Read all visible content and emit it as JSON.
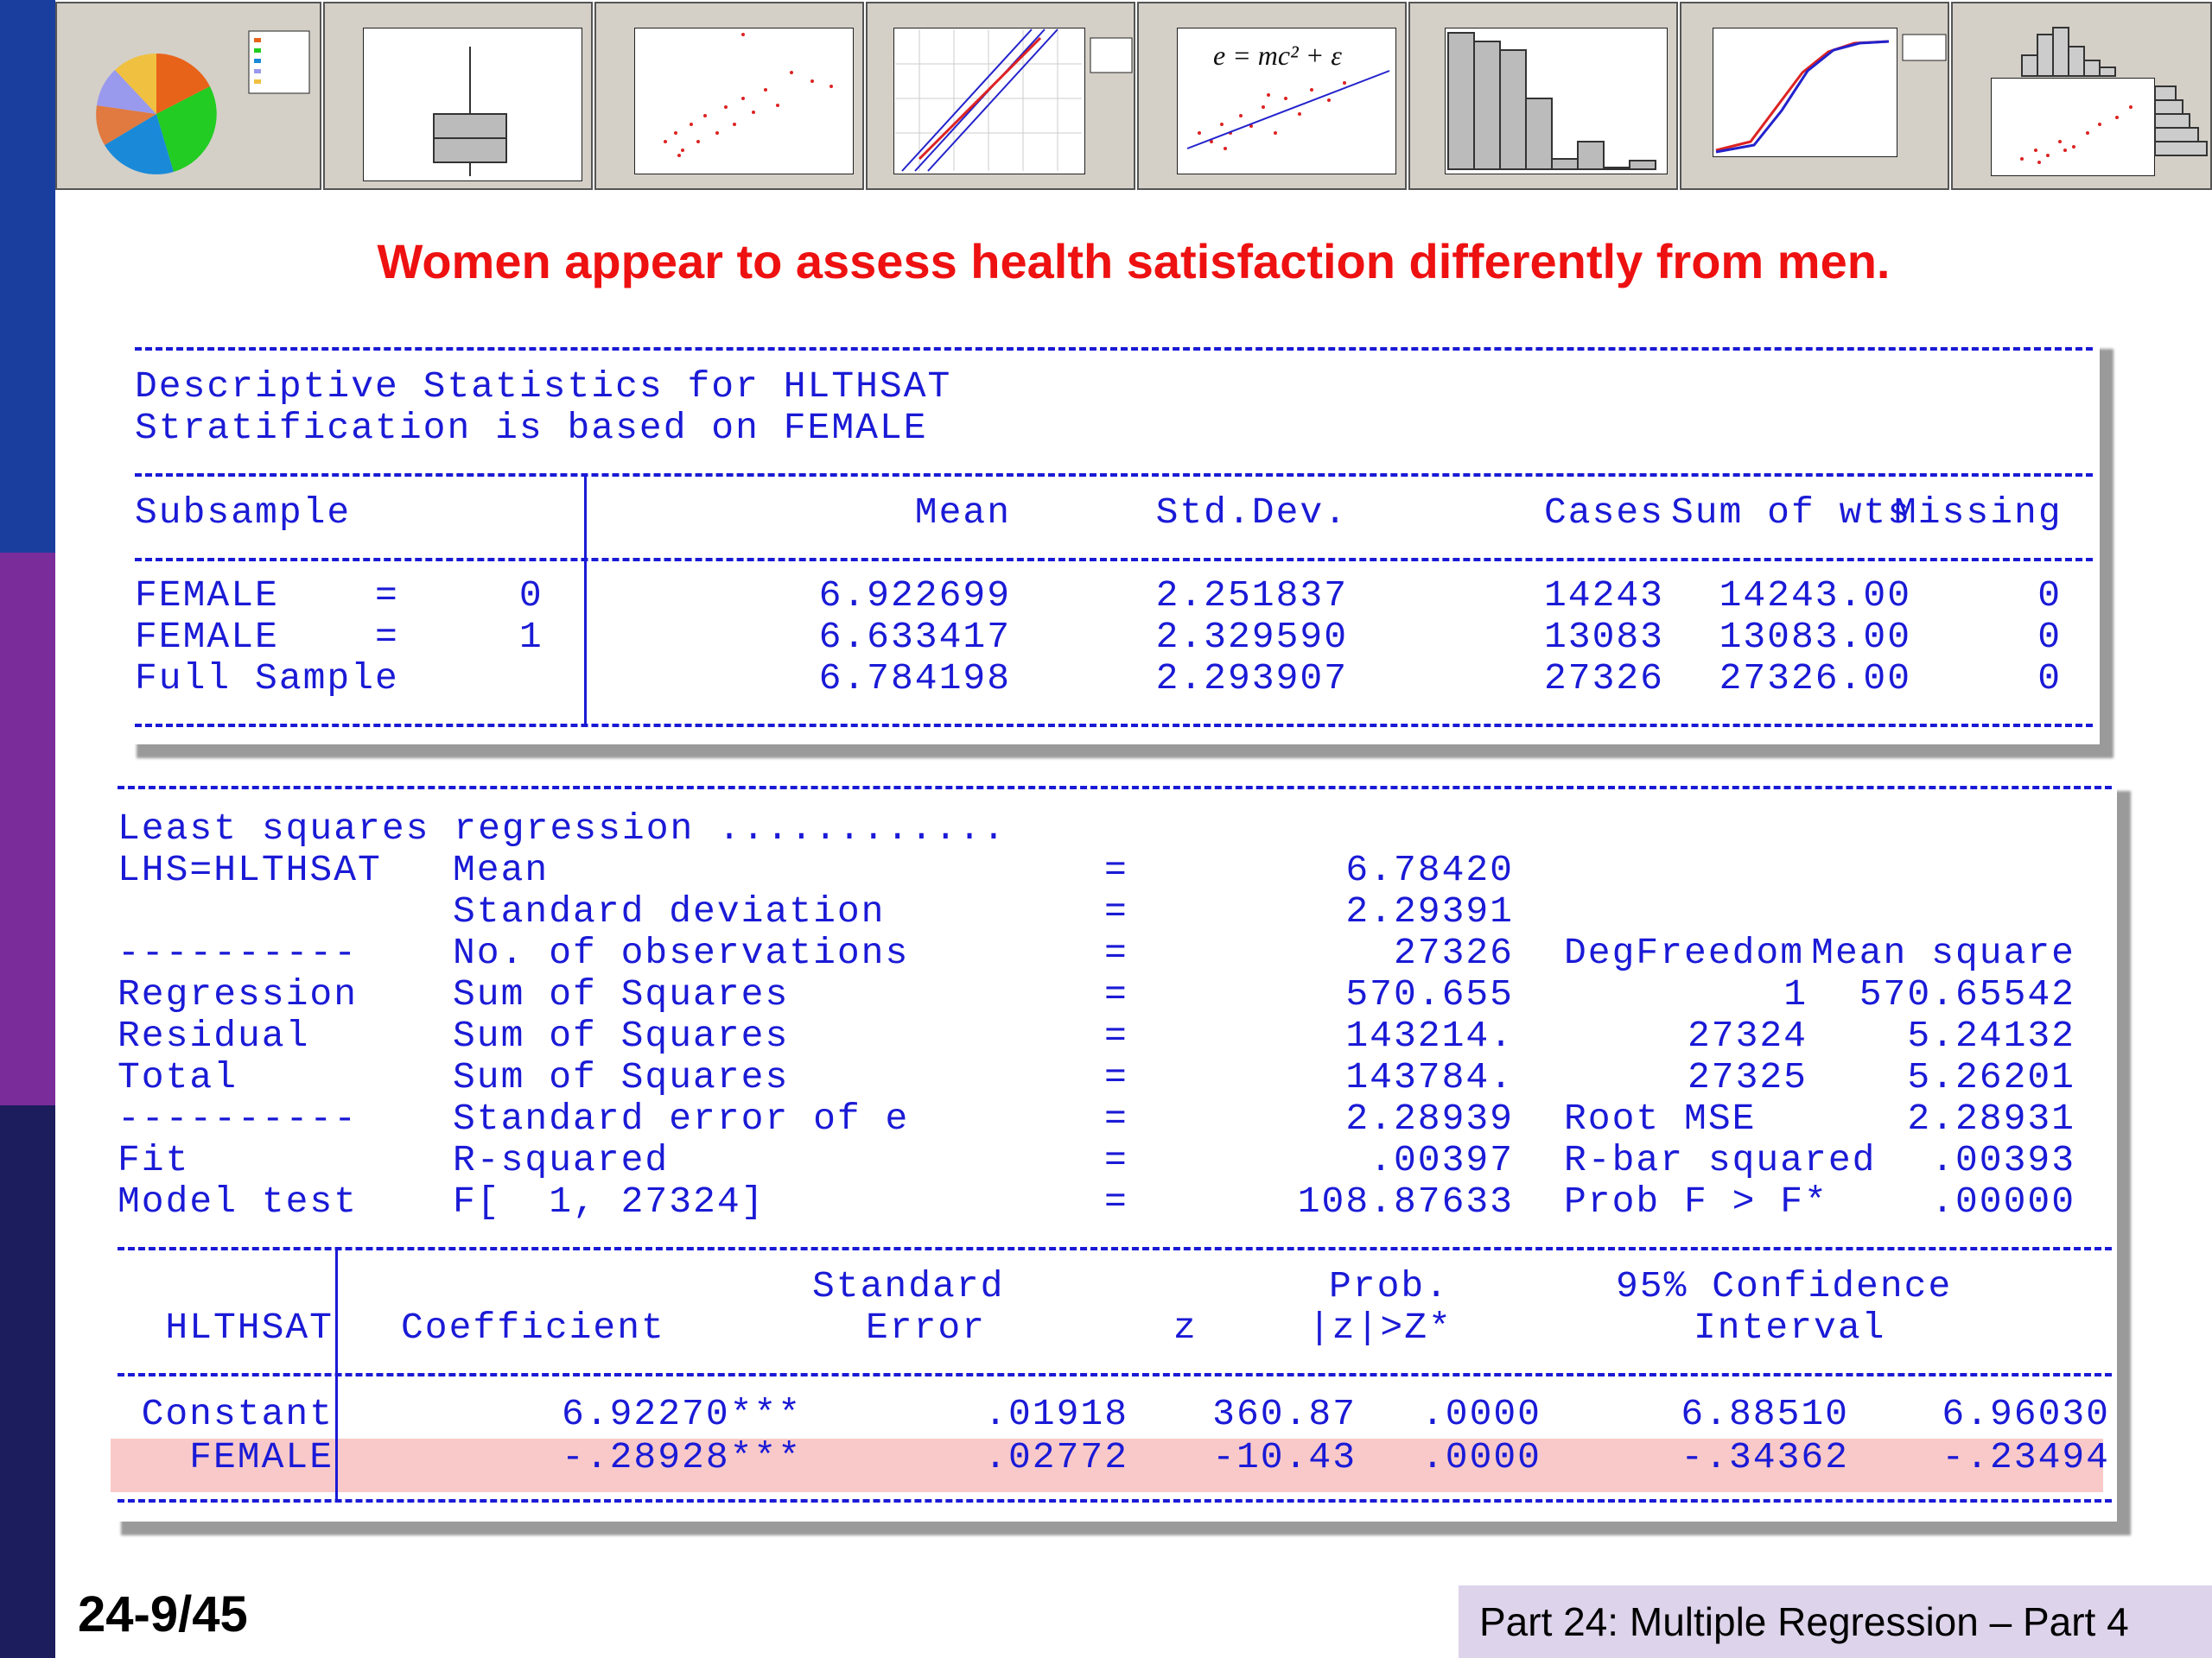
{
  "headline": "Women appear to assess health satisfaction differently from men.",
  "thumbnails": {
    "equation": "e = mc² + ε"
  },
  "desc": {
    "title1": "Descriptive Statistics for HLTHSAT",
    "title2": "Stratification is based on FEMALE",
    "headers": [
      "Subsample",
      "Mean",
      "Std.Dev.",
      "Cases",
      "Sum of wts",
      "Missing"
    ],
    "rows": [
      {
        "label": "FEMALE    =     0",
        "mean": "6.922699",
        "sd": "2.251837",
        "cases": "14243",
        "wts": "14243.00",
        "missing": "0"
      },
      {
        "label": "FEMALE    =     1",
        "mean": "6.633417",
        "sd": "2.329590",
        "cases": "13083",
        "wts": "13083.00",
        "missing": "0"
      },
      {
        "label": "Full Sample",
        "mean": "6.784198",
        "sd": "2.293907",
        "cases": "27326",
        "wts": "27326.00",
        "missing": "0"
      }
    ]
  },
  "reg": {
    "title": "Least squares regression ............",
    "lines": [
      {
        "c1": "LHS=HLTHSAT",
        "c2": "Mean",
        "eq": "=",
        "val": "6.78420",
        "c4": "",
        "c5": ""
      },
      {
        "c1": "",
        "c2": "Standard deviation",
        "eq": "=",
        "val": "2.29391",
        "c4": "",
        "c5": ""
      },
      {
        "c1": "----------",
        "c2": "No. of observations",
        "eq": "=",
        "val": "27326",
        "c4": "DegFreedom",
        "c5": "Mean square"
      },
      {
        "c1": "Regression",
        "c2": "Sum of Squares",
        "eq": "=",
        "val": "570.655",
        "c4": "1",
        "c5": "570.65542"
      },
      {
        "c1": "Residual",
        "c2": "Sum of Squares",
        "eq": "=",
        "val": "143214.",
        "c4": "27324",
        "c5": "5.24132"
      },
      {
        "c1": "Total",
        "c2": "Sum of Squares",
        "eq": "=",
        "val": "143784.",
        "c4": "27325",
        "c5": "5.26201"
      },
      {
        "c1": "----------",
        "c2": "Standard error of e",
        "eq": "=",
        "val": "2.28939",
        "c4": "Root MSE",
        "c5": "2.28931"
      },
      {
        "c1": "Fit",
        "c2": "R-squared",
        "eq": "=",
        "val": ".00397",
        "c4": "R-bar squared",
        "c5": ".00393"
      },
      {
        "c1": "Model test",
        "c2": "F[  1, 27324]",
        "eq": "=",
        "val": "108.87633",
        "c4": "Prob F > F*",
        "c5": ".00000"
      }
    ],
    "coef_header": {
      "var": "HLTHSAT",
      "coef": "Coefficient",
      "se1": "Standard",
      "se2": "Error",
      "z": "z",
      "p1": "Prob.",
      "p2": "|z|>Z*",
      "ci1": "95% Confidence",
      "ci2": "Interval"
    },
    "coef_rows": [
      {
        "var": "Constant",
        "coef": "6.92270***",
        "se": ".01918",
        "z": "360.87",
        "p": ".0000",
        "lo": "6.88510",
        "hi": "6.96030"
      },
      {
        "var": "FEMALE",
        "coef": "-.28928***",
        "se": ".02772",
        "z": "-10.43",
        "p": ".0000",
        "lo": "-.34362",
        "hi": "-.23494"
      }
    ]
  },
  "footer": {
    "page": "24-9/45",
    "section": "Part 24: Multiple Regression – Part 4"
  },
  "colors": {
    "headline": "#ee1111",
    "output_text": "#1a1ad6",
    "highlight": "#f9c9c9",
    "sidebar_blue": "#1a3e9e",
    "sidebar_purple": "#7a2c9a",
    "sidebar_navy": "#1b1d5c",
    "footer_box": "#ddd3ea"
  }
}
